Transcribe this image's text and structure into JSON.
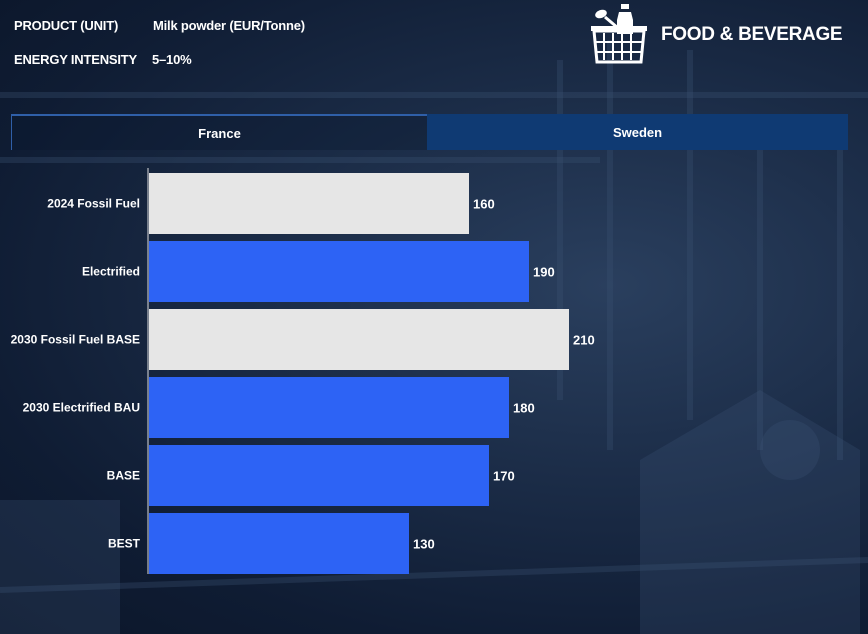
{
  "header": {
    "product_label": "PRODUCT (UNIT)",
    "product_value": "Milk powder (EUR/Tonne)",
    "energy_label": "ENERGY INTENSITY",
    "energy_value": "5–10%"
  },
  "brand": {
    "title": "FOOD & BEVERAGE",
    "icon": "grocery-basket-icon"
  },
  "tabs": [
    {
      "label": "France",
      "active": true
    },
    {
      "label": "Sweden",
      "active": false
    }
  ],
  "colors": {
    "fossil": "#e6e6e6",
    "electrified": "#2d63f5",
    "axis": "#dddddd"
  },
  "chart_data": {
    "type": "bar",
    "orientation": "horizontal",
    "categories": [
      "2024 Fossil Fuel",
      "Electrified",
      "2030 Fossil Fuel BASE",
      "2030 Electrified BAU",
      "BASE",
      "BEST"
    ],
    "values": [
      160,
      190,
      210,
      180,
      170,
      130
    ],
    "value_labels": [
      "160",
      "190",
      "210",
      "180",
      "170",
      "130"
    ],
    "bar_kinds": [
      "fossil",
      "electrified",
      "fossil",
      "electrified",
      "electrified",
      "electrified"
    ],
    "xlim": [
      0,
      210
    ]
  }
}
